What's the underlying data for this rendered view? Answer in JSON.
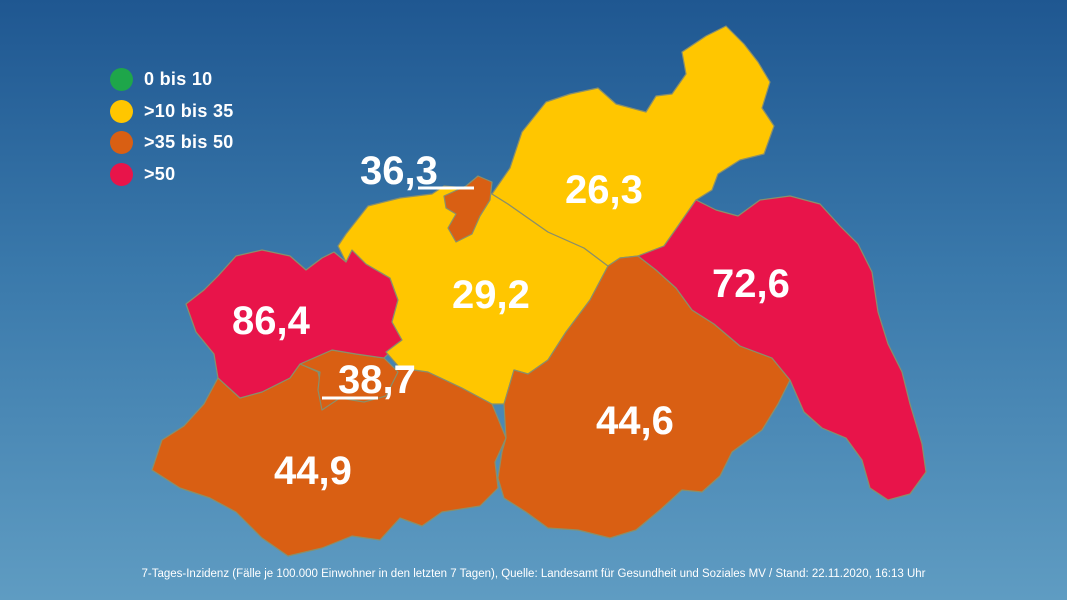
{
  "legend": {
    "items": [
      {
        "label": "0 bis 10",
        "color": "#1ea64a"
      },
      {
        "label": ">10 bis 35",
        "color": "#ffc600"
      },
      {
        "label": ">35 bis 50",
        "color": "#d95f13"
      },
      {
        "label": ">50",
        "color": "#e8144a"
      }
    ]
  },
  "regions": {
    "nordwestmecklenburg": {
      "value": "86,4",
      "color": "#e8144a"
    },
    "schwerin": {
      "value": "38,7",
      "color": "#d95f13"
    },
    "ludwigslust_parchim": {
      "value": "44,9",
      "color": "#d95f13"
    },
    "rostock_landkreis": {
      "value": "29,2",
      "color": "#ffc600"
    },
    "rostock_stadt": {
      "value": "36,3",
      "color": "#d95f13"
    },
    "vorpommern_ruegen": {
      "value": "26,3",
      "color": "#ffc600"
    },
    "mecklenburgische_seenplatte": {
      "value": "44,6",
      "color": "#d95f13"
    },
    "vorpommern_greifswald": {
      "value": "72,6",
      "color": "#e8144a"
    }
  },
  "footnote": "7-Tages-Inzidenz (Fälle je 100.000 Einwohner in den letzten 7 Tagen), Quelle: Landesamt für Gesundheit und Soziales MV / Stand: 22.11.2020, 16:13 Uhr"
}
